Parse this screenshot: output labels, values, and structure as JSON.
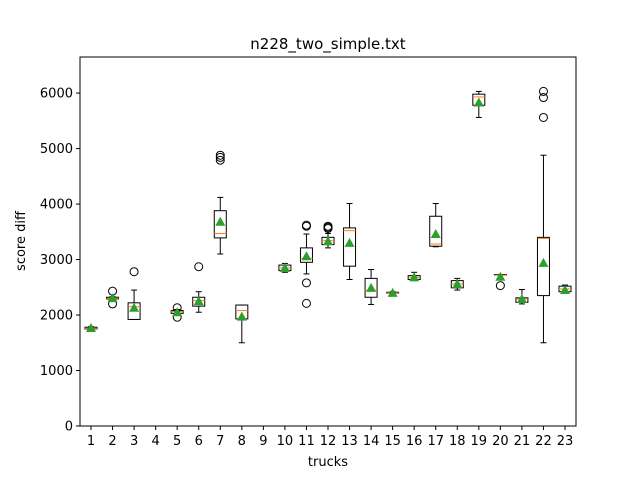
{
  "chart_data": {
    "type": "box",
    "title": "n228_two_simple.txt",
    "xlabel": "trucks",
    "ylabel": "score diff",
    "ylim": [
      0,
      6650
    ],
    "yticks": [
      0,
      1000,
      2000,
      3000,
      4000,
      5000,
      6000
    ],
    "categories": [
      "1",
      "2",
      "3",
      "4",
      "5",
      "6",
      "7",
      "8",
      "9",
      "10",
      "11",
      "12",
      "13",
      "14",
      "15",
      "16",
      "17",
      "18",
      "19",
      "20",
      "21",
      "22",
      "23"
    ],
    "colors": {
      "box": "#000000",
      "median": "#ff7f0e",
      "mean": "#2ca02c",
      "flier": "#000000"
    },
    "grid": false,
    "boxes": [
      {
        "x": "1",
        "whislo": 1740,
        "q1": 1750,
        "med": 1760,
        "q3": 1780,
        "whishi": 1790,
        "mean": 1765,
        "fliers": []
      },
      {
        "x": "2",
        "whislo": 2280,
        "q1": 2290,
        "med": 2300,
        "q3": 2320,
        "whishi": 2330,
        "mean": 2305,
        "fliers": [
          2430,
          2200
        ]
      },
      {
        "x": "3",
        "whislo": 1920,
        "q1": 1920,
        "med": 2150,
        "q3": 2220,
        "whishi": 2450,
        "mean": 2130,
        "fliers": [
          2780
        ]
      },
      {
        "x": "4",
        "fliers": []
      },
      {
        "x": "5",
        "whislo": 2010,
        "q1": 2030,
        "med": 2060,
        "q3": 2080,
        "whishi": 2100,
        "mean": 2050,
        "fliers": [
          2130,
          1960
        ]
      },
      {
        "x": "6",
        "whislo": 2050,
        "q1": 2160,
        "med": 2260,
        "q3": 2320,
        "whishi": 2420,
        "mean": 2250,
        "fliers": [
          2870
        ]
      },
      {
        "x": "7",
        "whislo": 3100,
        "q1": 3390,
        "med": 3470,
        "q3": 3880,
        "whishi": 4120,
        "mean": 3680,
        "fliers": [
          4880,
          4840,
          4790
        ]
      },
      {
        "x": "8",
        "whislo": 1500,
        "q1": 1930,
        "med": 2080,
        "q3": 2180,
        "whishi": 2180,
        "mean": 1970,
        "fliers": []
      },
      {
        "x": "9",
        "fliers": []
      },
      {
        "x": "10",
        "whislo": 2770,
        "q1": 2800,
        "med": 2850,
        "q3": 2900,
        "whishi": 2930,
        "mean": 2850,
        "fliers": []
      },
      {
        "x": "11",
        "whislo": 2740,
        "q1": 2950,
        "med": 3020,
        "q3": 3210,
        "whishi": 3460,
        "mean": 3060,
        "fliers": [
          3620,
          3600,
          2580,
          2210
        ]
      },
      {
        "x": "12",
        "whislo": 3210,
        "q1": 3270,
        "med": 3340,
        "q3": 3400,
        "whishi": 3470,
        "mean": 3330,
        "fliers": [
          3600,
          3580,
          3560
        ]
      },
      {
        "x": "13",
        "whislo": 2640,
        "q1": 2880,
        "med": 3520,
        "q3": 3570,
        "whishi": 4010,
        "mean": 3300,
        "fliers": []
      },
      {
        "x": "14",
        "whislo": 2190,
        "q1": 2320,
        "med": 2450,
        "q3": 2660,
        "whishi": 2820,
        "mean": 2490,
        "fliers": []
      },
      {
        "x": "15",
        "whislo": 2380,
        "q1": 2395,
        "med": 2400,
        "q3": 2410,
        "whishi": 2420,
        "mean": 2400,
        "fliers": []
      },
      {
        "x": "16",
        "whislo": 2620,
        "q1": 2640,
        "med": 2680,
        "q3": 2710,
        "whishi": 2770,
        "mean": 2680,
        "fliers": []
      },
      {
        "x": "17",
        "whislo": 3230,
        "q1": 3240,
        "med": 3280,
        "q3": 3780,
        "whishi": 4010,
        "mean": 3460,
        "fliers": []
      },
      {
        "x": "18",
        "whislo": 2450,
        "q1": 2490,
        "med": 2560,
        "q3": 2620,
        "whishi": 2660,
        "mean": 2560,
        "fliers": []
      },
      {
        "x": "19",
        "whislo": 5560,
        "q1": 5780,
        "med": 5930,
        "q3": 5980,
        "whishi": 6030,
        "mean": 5830,
        "fliers": []
      },
      {
        "x": "20",
        "whislo": 2720,
        "q1": 2720,
        "med": 2720,
        "q3": 2730,
        "whishi": 2730,
        "mean": 2690,
        "fliers": [
          2530
        ]
      },
      {
        "x": "21",
        "whislo": 2200,
        "q1": 2230,
        "med": 2290,
        "q3": 2310,
        "whishi": 2460,
        "mean": 2290,
        "fliers": []
      },
      {
        "x": "22",
        "whislo": 1500,
        "q1": 2350,
        "med": 3380,
        "q3": 3400,
        "whishi": 4880,
        "mean": 2940,
        "fliers": [
          6030,
          5920,
          5560
        ]
      },
      {
        "x": "23",
        "whislo": 2420,
        "q1": 2420,
        "med": 2470,
        "q3": 2520,
        "whishi": 2540,
        "mean": 2450,
        "fliers": []
      }
    ]
  }
}
